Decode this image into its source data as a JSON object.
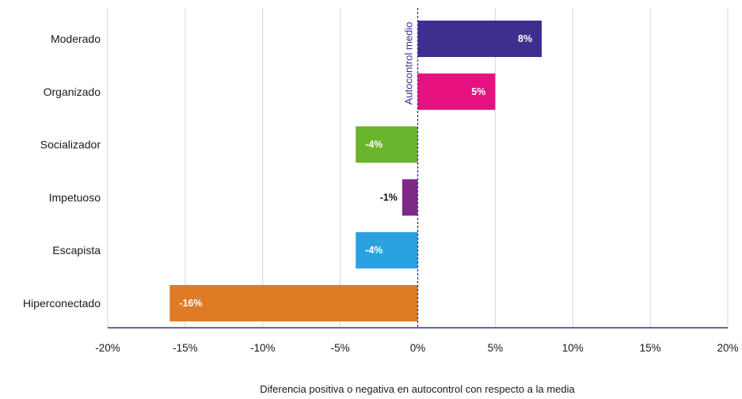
{
  "chart_data": {
    "type": "bar",
    "orientation": "horizontal",
    "categories": [
      "Moderado",
      "Organizado",
      "Socializador",
      "Impetuoso",
      "Escapista",
      "Hiperconectado"
    ],
    "values": [
      8,
      5,
      -4,
      -1,
      -4,
      -16
    ],
    "data_labels": [
      "8%",
      "5%",
      "-4%",
      "-1%",
      "-4%",
      "-16%"
    ],
    "colors": [
      "#3c2f8f",
      "#e6117f",
      "#6ab42e",
      "#7d2a86",
      "#2aa2df",
      "#e07b25"
    ],
    "label_colors": [
      "#ffffff",
      "#ffffff",
      "#ffffff",
      "#111111",
      "#ffffff",
      "#ffffff"
    ],
    "xlim": [
      -20,
      20
    ],
    "x_ticks": [
      -20,
      -15,
      -10,
      -5,
      0,
      5,
      10,
      15,
      20
    ],
    "x_tick_labels": [
      "-20%",
      "-15%",
      "-10%",
      "-5%",
      "0%",
      "5%",
      "10%",
      "15%",
      "20%"
    ],
    "xlabel": "Diferencia positiva o negativa en autocontrol con respecto a la media",
    "ylabel": "",
    "title": "",
    "grid": true,
    "reference_line": {
      "x": 0,
      "label": "Autocontrol medio",
      "color": "#3c2f8f"
    },
    "axis_color": "#3c2f8f",
    "grid_color": "#d4d2ea"
  }
}
